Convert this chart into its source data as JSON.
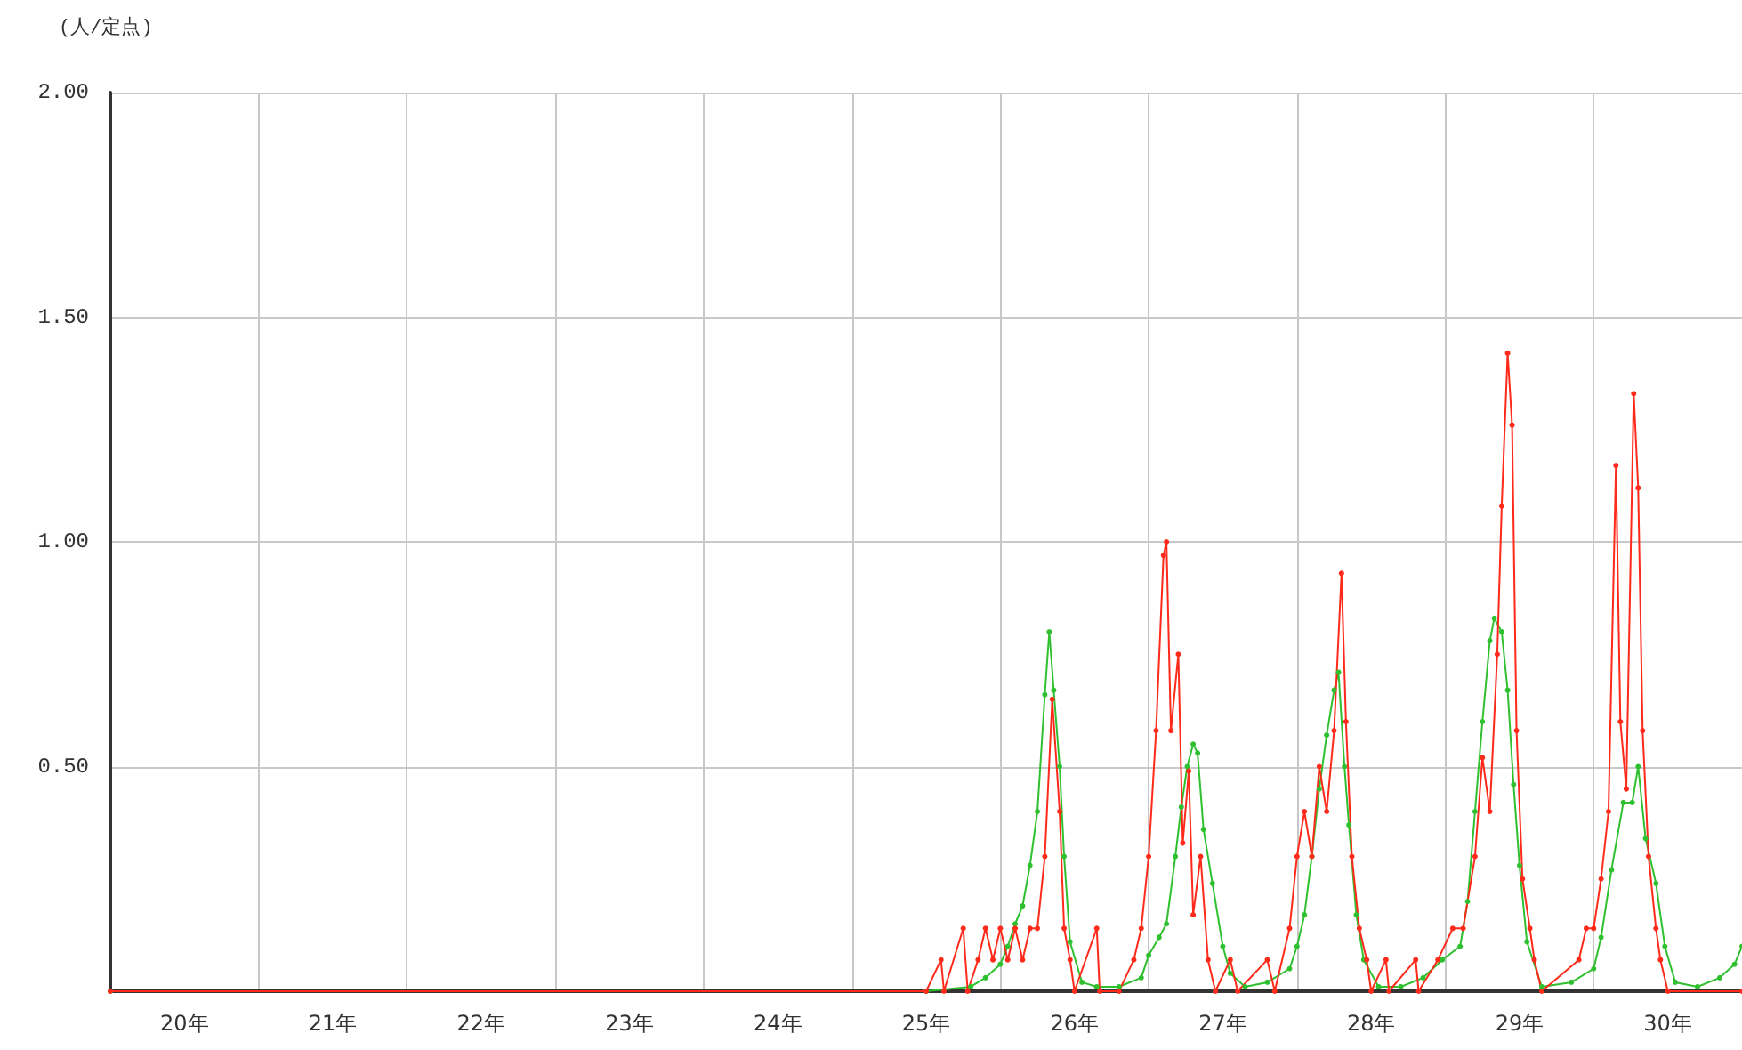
{
  "chart_data": {
    "type": "line",
    "ylabel": "(人/定点)",
    "xlim": [
      20,
      31
    ],
    "xticks": [
      {
        "value": 20,
        "label": null
      },
      {
        "value": 20.5,
        "label": "20年"
      },
      {
        "value": 21,
        "label": null
      },
      {
        "value": 21.5,
        "label": "21年"
      },
      {
        "value": 22,
        "label": null
      },
      {
        "value": 22.5,
        "label": "22年"
      },
      {
        "value": 23,
        "label": null
      },
      {
        "value": 23.5,
        "label": "23年"
      },
      {
        "value": 24,
        "label": null
      },
      {
        "value": 24.5,
        "label": "24年"
      },
      {
        "value": 25,
        "label": null
      },
      {
        "value": 25.5,
        "label": "25年"
      },
      {
        "value": 26,
        "label": null
      },
      {
        "value": 26.5,
        "label": "26年"
      },
      {
        "value": 27,
        "label": null
      },
      {
        "value": 27.5,
        "label": "27年"
      },
      {
        "value": 28,
        "label": null
      },
      {
        "value": 28.5,
        "label": "28年"
      },
      {
        "value": 29,
        "label": null
      },
      {
        "value": 29.5,
        "label": "29年"
      },
      {
        "value": 30,
        "label": null
      },
      {
        "value": 30.5,
        "label": "30年"
      }
    ],
    "ylim": [
      0,
      2
    ],
    "yticks": [
      {
        "value": 0,
        "label": null
      },
      {
        "value": 0.5,
        "label": "0.50"
      },
      {
        "value": 1,
        "label": "1.00"
      },
      {
        "value": 1.5,
        "label": "1.50"
      },
      {
        "value": 2,
        "label": "2.00"
      }
    ],
    "grid": true,
    "marker": "circle",
    "line_style": "solid",
    "series": [
      {
        "color": "#2fc02f",
        "x": [
          20.0,
          25.5,
          25.8,
          25.9,
          26.0,
          26.05,
          26.1,
          26.15,
          26.2,
          26.25,
          26.3,
          26.33,
          26.36,
          26.4,
          26.43,
          26.47,
          26.55,
          26.65,
          26.8,
          26.95,
          27.0,
          27.07,
          27.12,
          27.18,
          27.22,
          27.26,
          27.3,
          27.33,
          27.37,
          27.43,
          27.5,
          27.55,
          27.65,
          27.8,
          27.95,
          28.0,
          28.05,
          28.1,
          28.15,
          28.2,
          28.25,
          28.28,
          28.32,
          28.35,
          28.4,
          28.45,
          28.55,
          28.7,
          28.85,
          28.98,
          29.1,
          29.15,
          29.2,
          29.25,
          29.3,
          29.33,
          29.38,
          29.42,
          29.46,
          29.5,
          29.55,
          29.65,
          29.85,
          30.0,
          30.05,
          30.12,
          30.2,
          30.26,
          30.3,
          30.35,
          30.42,
          30.48,
          30.55,
          30.7,
          30.85,
          30.95,
          31.0
        ],
        "values": [
          0,
          0,
          0.01,
          0.03,
          0.06,
          0.1,
          0.15,
          0.19,
          0.28,
          0.4,
          0.66,
          0.8,
          0.67,
          0.5,
          0.3,
          0.11,
          0.02,
          0.01,
          0.01,
          0.03,
          0.08,
          0.12,
          0.15,
          0.3,
          0.41,
          0.5,
          0.55,
          0.53,
          0.36,
          0.24,
          0.1,
          0.04,
          0.01,
          0.02,
          0.05,
          0.1,
          0.17,
          0.3,
          0.45,
          0.57,
          0.67,
          0.71,
          0.5,
          0.37,
          0.17,
          0.07,
          0.01,
          0.01,
          0.03,
          0.07,
          0.1,
          0.2,
          0.4,
          0.6,
          0.78,
          0.83,
          0.8,
          0.67,
          0.46,
          0.28,
          0.11,
          0.01,
          0.02,
          0.05,
          0.12,
          0.27,
          0.42,
          0.42,
          0.5,
          0.34,
          0.24,
          0.1,
          0.02,
          0.01,
          0.03,
          0.06,
          0.1
        ]
      },
      {
        "color": "#ff2a1a",
        "x": [
          20.0,
          25.5,
          25.6,
          25.62,
          25.75,
          25.78,
          25.85,
          25.9,
          25.95,
          26.0,
          26.05,
          26.1,
          26.15,
          26.2,
          26.25,
          26.3,
          26.35,
          26.4,
          26.43,
          26.47,
          26.5,
          26.65,
          26.67,
          26.8,
          26.9,
          26.95,
          27.0,
          27.05,
          27.1,
          27.12,
          27.15,
          27.2,
          27.23,
          27.27,
          27.3,
          27.35,
          27.4,
          27.45,
          27.55,
          27.6,
          27.8,
          27.85,
          27.95,
          28.0,
          28.05,
          28.1,
          28.15,
          28.2,
          28.25,
          28.3,
          28.33,
          28.37,
          28.42,
          28.47,
          28.5,
          28.6,
          28.62,
          28.8,
          28.82,
          28.95,
          29.05,
          29.12,
          29.2,
          29.25,
          29.3,
          29.35,
          29.38,
          29.42,
          29.45,
          29.48,
          29.52,
          29.57,
          29.6,
          29.65,
          29.9,
          29.95,
          30.0,
          30.05,
          30.1,
          30.15,
          30.18,
          30.22,
          30.27,
          30.3,
          30.33,
          30.37,
          30.42,
          30.45,
          30.5,
          31.0
        ],
        "values": [
          0,
          0,
          0.07,
          0,
          0.14,
          0,
          0.07,
          0.14,
          0.07,
          0.14,
          0.07,
          0.14,
          0.07,
          0.14,
          0.14,
          0.3,
          0.65,
          0.4,
          0.14,
          0.07,
          0,
          0.14,
          0,
          0,
          0.07,
          0.14,
          0.3,
          0.58,
          0.97,
          1.0,
          0.58,
          0.75,
          0.33,
          0.49,
          0.17,
          0.3,
          0.07,
          0,
          0.07,
          0,
          0.07,
          0,
          0.14,
          0.3,
          0.4,
          0.3,
          0.5,
          0.4,
          0.58,
          0.93,
          0.6,
          0.3,
          0.14,
          0.07,
          0,
          0.07,
          0,
          0.07,
          0,
          0.07,
          0.14,
          0.14,
          0.3,
          0.52,
          0.4,
          0.75,
          1.08,
          1.42,
          1.26,
          0.58,
          0.25,
          0.14,
          0.07,
          0,
          0.07,
          0.14,
          0.14,
          0.25,
          0.4,
          1.17,
          0.6,
          0.45,
          1.33,
          1.12,
          0.58,
          0.3,
          0.14,
          0.07,
          0,
          0
        ]
      }
    ]
  }
}
